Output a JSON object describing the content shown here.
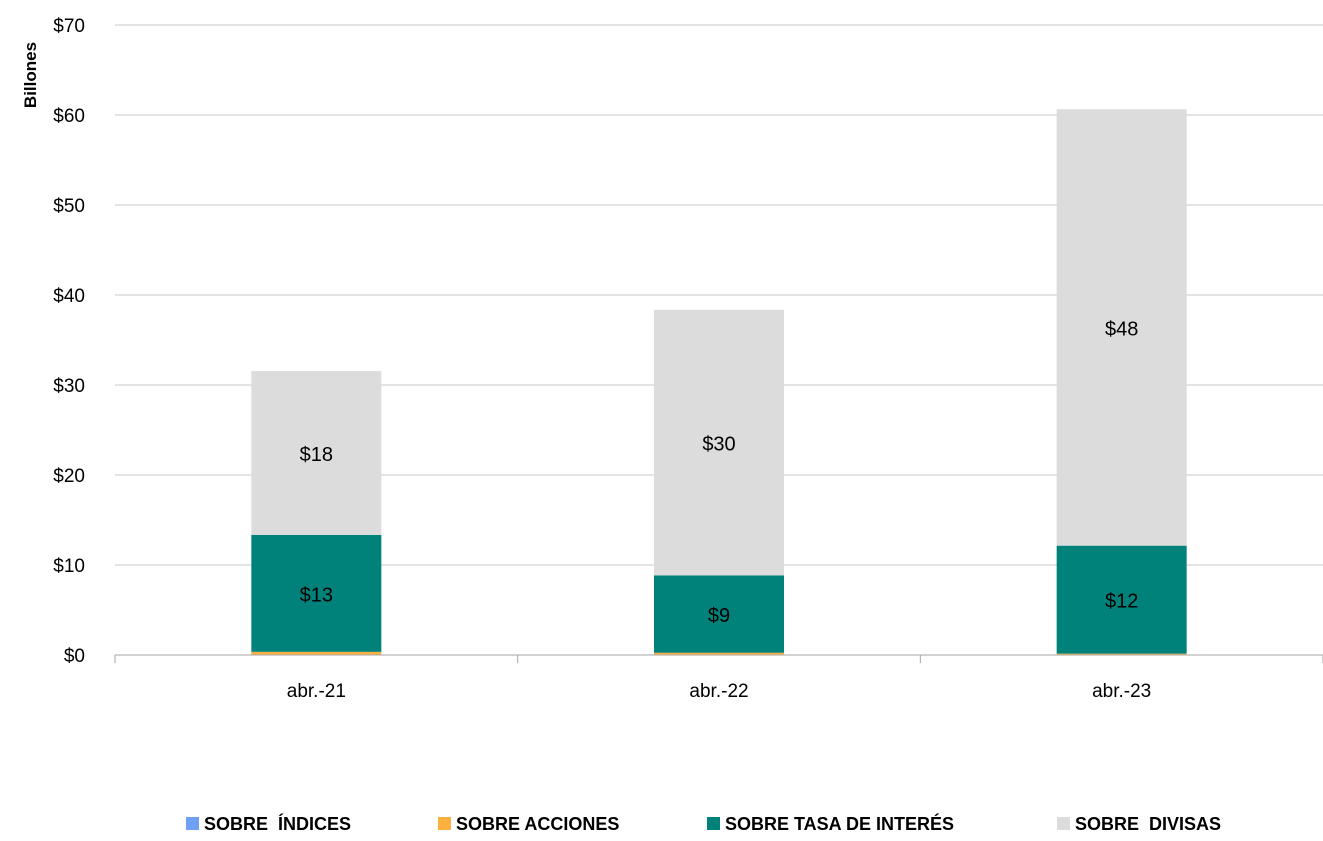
{
  "chart_data": {
    "type": "bar",
    "stacked": true,
    "categories": [
      "abr.-21",
      "abr.-22",
      "abr.-23"
    ],
    "series": [
      {
        "name": "SOBRE  ÍNDICES",
        "values": [
          0.05,
          0.05,
          0.05
        ],
        "color": "#6fa0f5",
        "show_labels": false
      },
      {
        "name": "SOBRE ACCIONES",
        "values": [
          0.3,
          0.2,
          0.1
        ],
        "color": "#fbb040",
        "show_labels": false
      },
      {
        "name": "SOBRE TASA DE INTERÉS",
        "values": [
          13.0,
          8.6,
          12.0
        ],
        "color": "#00827a",
        "show_labels": true
      },
      {
        "name": "SOBRE  DIVISAS",
        "values": [
          18.2,
          29.5,
          48.5
        ],
        "color": "#dcdcdc",
        "show_labels": true
      }
    ],
    "data_labels": [
      [
        "",
        "",
        "$13",
        "$18"
      ],
      [
        "",
        "",
        "$9",
        "$30"
      ],
      [
        "",
        "",
        "$12",
        "$48"
      ]
    ],
    "ylabel": "Billones",
    "ylim": [
      0,
      70
    ],
    "yticks": [
      0,
      10,
      20,
      30,
      40,
      50,
      60,
      70
    ],
    "ytick_labels": [
      "$0",
      "$10",
      "$20",
      "$30",
      "$40",
      "$50",
      "$60",
      "$70"
    ],
    "grid": true,
    "legend_position": "bottom"
  }
}
